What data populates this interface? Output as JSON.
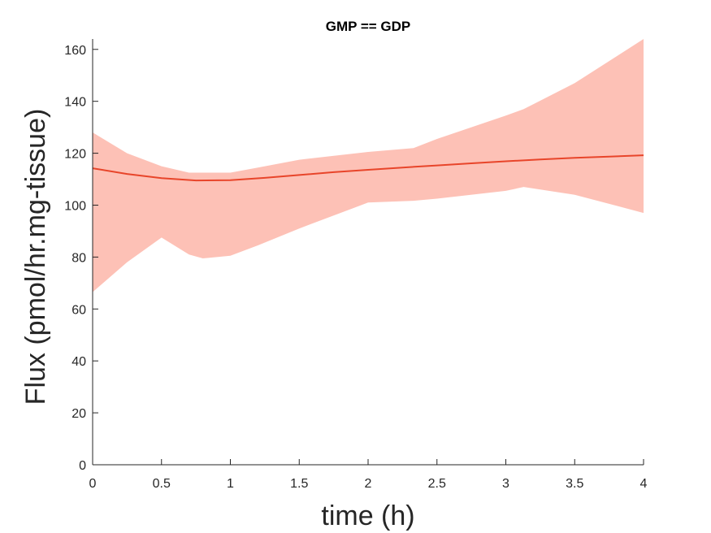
{
  "chart_data": {
    "type": "area",
    "title": "GMP == GDP",
    "xlabel": "time (h)",
    "ylabel": "Flux (pmol/hr.mg-tissue)",
    "xlim": [
      0,
      4
    ],
    "ylim": [
      0,
      164
    ],
    "xticks": [
      0,
      0.5,
      1,
      1.5,
      2,
      2.5,
      3,
      3.5,
      4
    ],
    "xtick_labels": [
      "0",
      "0.5",
      "1",
      "1.5",
      "2",
      "2.5",
      "3",
      "3.5",
      "4"
    ],
    "yticks": [
      0,
      20,
      40,
      60,
      80,
      100,
      120,
      140,
      160
    ],
    "ytick_labels": [
      "0",
      "20",
      "40",
      "60",
      "80",
      "100",
      "120",
      "140",
      "160"
    ],
    "grid": false,
    "colors": {
      "line": "#e8452a",
      "band": "#fdc1b6",
      "axis": "#262626"
    },
    "series": [
      {
        "x": [
          0,
          0.25,
          0.5,
          0.75,
          1,
          1.25,
          1.5,
          1.75,
          2,
          2.25,
          2.5,
          2.75,
          3,
          3.25,
          3.5,
          3.75,
          4
        ],
        "values": [
          114.2,
          112.0,
          110.4,
          109.5,
          109.6,
          110.5,
          111.6,
          112.7,
          113.6,
          114.5,
          115.3,
          116.1,
          116.9,
          117.6,
          118.2,
          118.7,
          119.2
        ]
      }
    ],
    "band": {
      "x": [
        0,
        0.25,
        0.5,
        0.7,
        0.8,
        1,
        1.2,
        1.5,
        2,
        2.33,
        2.5,
        3,
        3.13,
        3.5,
        4
      ],
      "upper": [
        128,
        120,
        115,
        112.5,
        112.5,
        112.5,
        114.5,
        117.5,
        120.5,
        122,
        125.5,
        134.5,
        137,
        147,
        164
      ],
      "lower": [
        66.5,
        78,
        87.5,
        81,
        79.5,
        80.5,
        84.5,
        91,
        101,
        101.7,
        102.5,
        105.5,
        107,
        104,
        97
      ]
    }
  }
}
